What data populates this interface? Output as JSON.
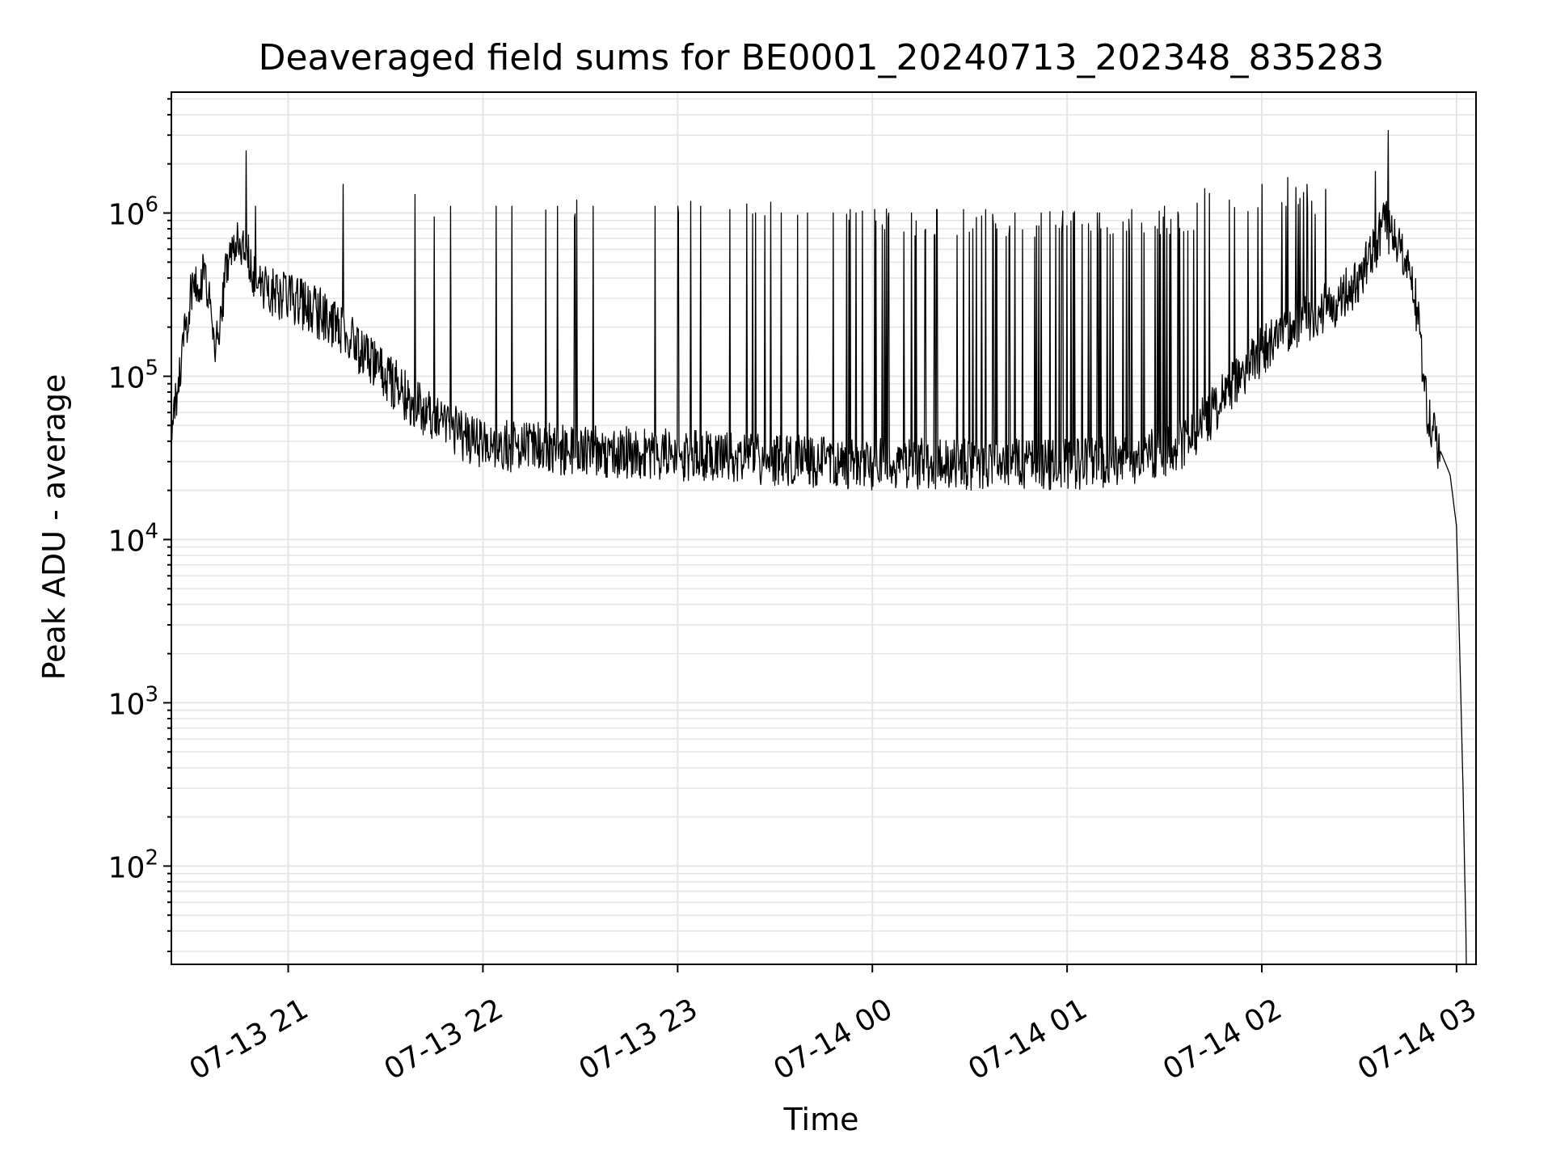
{
  "chart_data": {
    "type": "line",
    "title": "Deaveraged field sums for BE0001_20240713_202348_835283",
    "xlabel": "Time",
    "ylabel": "Peak ADU - average",
    "yscale": "log",
    "grid": "on (major and minor)",
    "legend": "none",
    "line_color": "#000000",
    "grid_color": "#e6e6e6",
    "xlim": [
      "2024-07-13 20:24",
      "2024-07-14 03:06"
    ],
    "ylim": [
      25,
      5500000
    ],
    "x_ticks": [
      "2024-07-13 21:00",
      "2024-07-13 22:00",
      "2024-07-13 23:00",
      "2024-07-14 00:00",
      "2024-07-14 01:00",
      "2024-07-14 02:00",
      "2024-07-14 03:00"
    ],
    "x_tick_labels": [
      "07-13 21",
      "07-13 22",
      "07-13 23",
      "07-14 00",
      "07-14 01",
      "07-14 02",
      "07-14 03"
    ],
    "y_ticks": [
      {
        "base": "10",
        "exp": "2",
        "value": 100
      },
      {
        "base": "10",
        "exp": "3",
        "value": 1000
      },
      {
        "base": "10",
        "exp": "4",
        "value": 10000
      },
      {
        "base": "10",
        "exp": "5",
        "value": 100000
      },
      {
        "base": "10",
        "exp": "6",
        "value": 1000000
      }
    ],
    "series": [
      {
        "baseline": {
          "x": [
            "2024-07-13 20:24",
            "2024-07-13 20:27",
            "2024-07-13 20:30",
            "2024-07-13 20:34",
            "2024-07-13 20:38",
            "2024-07-13 20:42",
            "2024-07-13 20:46",
            "2024-07-13 20:50",
            "2024-07-13 20:55",
            "2024-07-13 21:00",
            "2024-07-13 21:10",
            "2024-07-13 21:20",
            "2024-07-13 21:30",
            "2024-07-13 21:40",
            "2024-07-13 21:50",
            "2024-07-13 22:00",
            "2024-07-13 22:30",
            "2024-07-13 23:00",
            "2024-07-13 23:30",
            "2024-07-14 00:00",
            "2024-07-14 00:30",
            "2024-07-14 01:00",
            "2024-07-14 01:20",
            "2024-07-14 01:35",
            "2024-07-14 01:45",
            "2024-07-14 01:55",
            "2024-07-14 02:05",
            "2024-07-14 02:15",
            "2024-07-14 02:25",
            "2024-07-14 02:33",
            "2024-07-14 02:38",
            "2024-07-14 02:42",
            "2024-07-14 02:45",
            "2024-07-14 02:48",
            "2024-07-14 02:51",
            "2024-07-14 02:55",
            "2024-07-14 02:58",
            "2024-07-14 03:00",
            "2024-07-14 03:01",
            "2024-07-14 03:02",
            "2024-07-14 03:03"
          ],
          "y": [
            50000,
            120000,
            300000,
            450000,
            150000,
            650000,
            650000,
            400000,
            320000,
            300000,
            240000,
            160000,
            100000,
            65000,
            48000,
            38000,
            35000,
            33000,
            31000,
            29000,
            29000,
            29000,
            30000,
            38000,
            60000,
            110000,
            180000,
            230000,
            300000,
            500000,
            900000,
            600000,
            450000,
            250000,
            60000,
            35000,
            25000,
            12000,
            2000,
            300,
            30
          ]
        },
        "spikes": {
          "x": [
            "2024-07-13 20:47",
            "2024-07-13 20:50",
            "2024-07-13 21:17",
            "2024-07-13 21:39",
            "2024-07-13 21:50",
            "2024-07-13 22:04",
            "2024-07-13 22:09",
            "2024-07-13 22:23",
            "2024-07-13 22:29",
            "2024-07-13 22:34",
            "2024-07-13 22:53",
            "2024-07-13 23:00",
            "2024-07-13 23:07",
            "2024-07-13 23:16",
            "2024-07-13 23:24",
            "2024-07-13 23:32",
            "2024-07-13 23:40",
            "2024-07-13 23:48",
            "2024-07-13 23:55",
            "2024-07-14 00:05",
            "2024-07-14 00:12",
            "2024-07-14 00:20",
            "2024-07-14 00:28",
            "2024-07-14 00:35",
            "2024-07-14 00:44",
            "2024-07-14 00:52",
            "2024-07-14 01:02",
            "2024-07-14 01:10",
            "2024-07-14 01:20",
            "2024-07-14 01:30",
            "2024-07-14 01:40",
            "2024-07-14 01:50",
            "2024-07-14 02:00",
            "2024-07-14 02:08",
            "2024-07-14 02:14",
            "2024-07-14 02:35",
            "2024-07-14 02:39"
          ],
          "y": [
            2400000,
            1100000,
            1500000,
            1300000,
            1100000,
            1100000,
            1100000,
            1100000,
            1200000,
            1100000,
            1100000,
            1100000,
            1100000,
            1050000,
            1000000,
            1000000,
            1000000,
            1000000,
            1000000,
            1000000,
            1000000,
            1050000,
            1050000,
            1050000,
            1000000,
            1000000,
            1000000,
            1000000,
            1050000,
            1100000,
            1150000,
            1200000,
            1500000,
            1650000,
            1500000,
            1800000,
            3200000
          ]
        }
      }
    ]
  }
}
